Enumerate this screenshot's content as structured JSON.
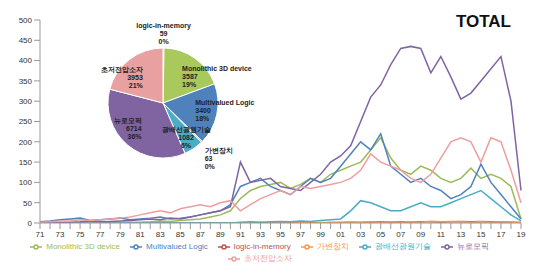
{
  "chart_data": [
    {
      "type": "line",
      "title": "TOTAL",
      "categories": [
        "71",
        null,
        "73",
        null,
        "75",
        null,
        "77",
        null,
        "79",
        null,
        "81",
        null,
        "83",
        null,
        "85",
        null,
        "87",
        null,
        "89",
        null,
        "91",
        null,
        "93",
        null,
        "95",
        null,
        "97",
        null,
        "99",
        null,
        "01",
        null,
        "03",
        null,
        "05",
        null,
        "07",
        null,
        "09",
        null,
        "11",
        null,
        "13",
        null,
        "15",
        null,
        "17",
        null,
        "19"
      ],
      "ylim": [
        0,
        500
      ],
      "yticks": [
        0,
        50,
        100,
        150,
        200,
        250,
        300,
        350,
        400,
        450,
        500
      ],
      "grid": false,
      "legend": "bottom",
      "series": [
        {
          "name": "logic-in-memory",
          "color": "#c0504d",
          "values": [
            0,
            0,
            0,
            0,
            0,
            0,
            0,
            0,
            0,
            0,
            0,
            0,
            0,
            0,
            0,
            0,
            0,
            0,
            0,
            0,
            0,
            0,
            1,
            0,
            0,
            1,
            0,
            1,
            0,
            1,
            1,
            2,
            1,
            2,
            3,
            2,
            3,
            2,
            3,
            3,
            2,
            3,
            4,
            3,
            4,
            3,
            2,
            2,
            1
          ]
        },
        {
          "name": "Monolithic 3D device",
          "color": "#9bbb59",
          "values": [
            0,
            0,
            0,
            0,
            1,
            0,
            1,
            2,
            1,
            2,
            2,
            3,
            5,
            4,
            6,
            8,
            10,
            15,
            20,
            30,
            60,
            80,
            90,
            95,
            100,
            85,
            95,
            110,
            100,
            120,
            130,
            140,
            150,
            180,
            210,
            160,
            130,
            120,
            140,
            130,
            110,
            100,
            110,
            135,
            110,
            120,
            110,
            90,
            10
          ]
        },
        {
          "name": "Multivalued Logic",
          "color": "#4f81bd",
          "values": [
            3,
            5,
            8,
            10,
            12,
            6,
            8,
            10,
            12,
            8,
            10,
            12,
            15,
            10,
            12,
            15,
            20,
            25,
            30,
            45,
            90,
            100,
            110,
            90,
            80,
            70,
            90,
            110,
            100,
            110,
            140,
            170,
            200,
            180,
            220,
            140,
            120,
            100,
            110,
            90,
            80,
            60,
            70,
            90,
            145,
            100,
            70,
            40,
            10
          ]
        },
        {
          "name": "가변장치",
          "color": "#f79646",
          "values": [
            0,
            0,
            0,
            0,
            0,
            0,
            0,
            0,
            0,
            0,
            0,
            0,
            0,
            0,
            0,
            0,
            0,
            0,
            0,
            0,
            0,
            1,
            0,
            0,
            1,
            0,
            1,
            0,
            1,
            1,
            1,
            2,
            2,
            3,
            2,
            3,
            2,
            3,
            2,
            4,
            3,
            4,
            3,
            2,
            3,
            2,
            3,
            2,
            1
          ]
        },
        {
          "name": "광배선광원기술",
          "color": "#4bacc6",
          "values": [
            0,
            0,
            0,
            0,
            0,
            0,
            0,
            0,
            0,
            0,
            0,
            0,
            0,
            0,
            0,
            0,
            0,
            0,
            0,
            0,
            2,
            3,
            2,
            3,
            4,
            3,
            5,
            4,
            6,
            8,
            10,
            30,
            55,
            50,
            40,
            30,
            30,
            40,
            50,
            40,
            40,
            50,
            60,
            70,
            80,
            60,
            40,
            20,
            5
          ]
        },
        {
          "name": "뉴로모픽",
          "color": "#8064a2",
          "values": [
            0,
            0,
            1,
            2,
            3,
            5,
            3,
            4,
            5,
            6,
            8,
            10,
            8,
            12,
            10,
            15,
            20,
            25,
            30,
            40,
            150,
            100,
            105,
            110,
            90,
            85,
            80,
            100,
            120,
            150,
            165,
            190,
            250,
            310,
            340,
            390,
            430,
            435,
            430,
            370,
            410,
            360,
            305,
            320,
            350,
            380,
            410,
            300,
            80
          ]
        },
        {
          "name": "초저전압소자",
          "color": "#ee9e9e",
          "values": [
            2,
            3,
            5,
            5,
            8,
            6,
            8,
            10,
            12,
            15,
            20,
            25,
            30,
            25,
            35,
            40,
            45,
            40,
            50,
            55,
            30,
            45,
            60,
            70,
            80,
            70,
            90,
            85,
            90,
            95,
            100,
            110,
            130,
            170,
            150,
            140,
            130,
            110,
            100,
            120,
            160,
            200,
            210,
            200,
            150,
            210,
            200,
            130,
            50
          ]
        }
      ]
    },
    {
      "type": "pie",
      "categories": [
        "logic-in-memory",
        "Monolithic 3D device",
        "Multivalued Logic",
        "가변장치",
        "광배선광원기술",
        "뉴로모픽",
        "초저전압소자"
      ],
      "values": [
        59,
        3587,
        3400,
        63,
        1082,
        6714,
        3953
      ],
      "percent_labels": [
        "0%",
        "19%",
        "18%",
        "0%",
        "6%",
        "36%",
        "21%"
      ],
      "colors": [
        "#c0504d",
        "#a9c95c",
        "#4f81bd",
        "#f79646",
        "#4bacc6",
        "#8064a2",
        "#e8a0a0"
      ]
    }
  ]
}
